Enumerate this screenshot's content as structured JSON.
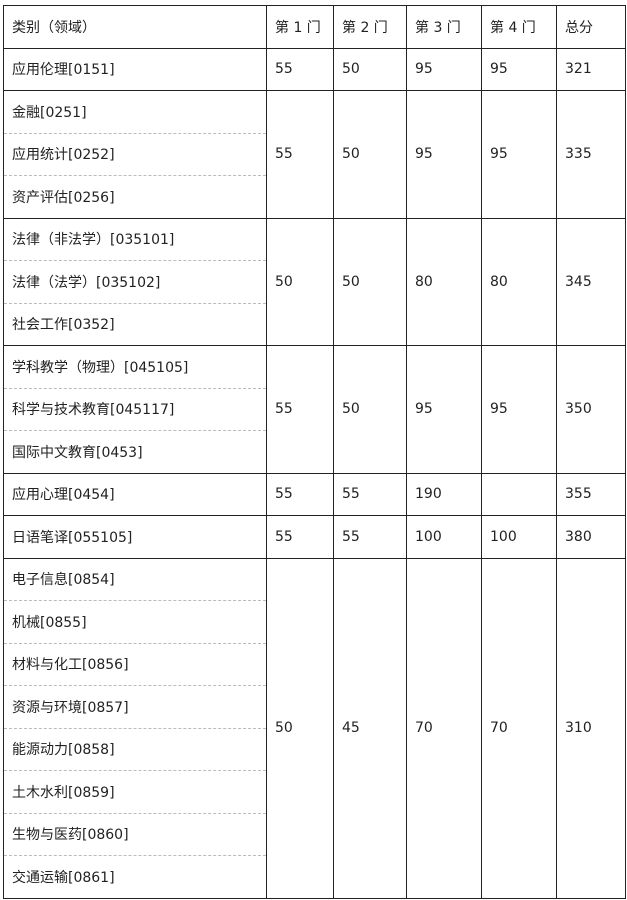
{
  "header": [
    "类别（领域）",
    "第 1 门",
    "第 2 门",
    "第 3 门",
    "第 4 门",
    "总分"
  ],
  "groups": [
    {
      "categories": [
        "应用伦理[0151]"
      ],
      "scores": [
        "55",
        "50",
        "95",
        "95",
        "321"
      ]
    },
    {
      "categories": [
        "金融[0251]",
        "应用统计[0252]",
        "资产评估[0256]"
      ],
      "scores": [
        "55",
        "50",
        "95",
        "95",
        "335"
      ]
    },
    {
      "categories": [
        "法律（非法学）[035101]",
        "法律（法学）[035102]",
        "社会工作[0352]"
      ],
      "scores": [
        "50",
        "50",
        "80",
        "80",
        "345"
      ]
    },
    {
      "categories": [
        "学科教学（物理）[045105]",
        "科学与技术教育[045117]",
        "国际中文教育[0453]"
      ],
      "scores": [
        "55",
        "50",
        "95",
        "95",
        "350"
      ]
    },
    {
      "categories": [
        "应用心理[0454]"
      ],
      "scores": [
        "55",
        "55",
        "190",
        "",
        "355"
      ]
    },
    {
      "categories": [
        "日语笔译[055105]"
      ],
      "scores": [
        "55",
        "55",
        "100",
        "100",
        "380"
      ]
    },
    {
      "categories": [
        "电子信息[0854]",
        "机械[0855]",
        "材料与化工[0856]",
        "资源与环境[0857]",
        "能源动力[0858]",
        "土木水利[0859]",
        "生物与医药[0860]",
        "交通运输[0861]"
      ],
      "scores": [
        "50",
        "45",
        "70",
        "70",
        "310"
      ]
    }
  ]
}
